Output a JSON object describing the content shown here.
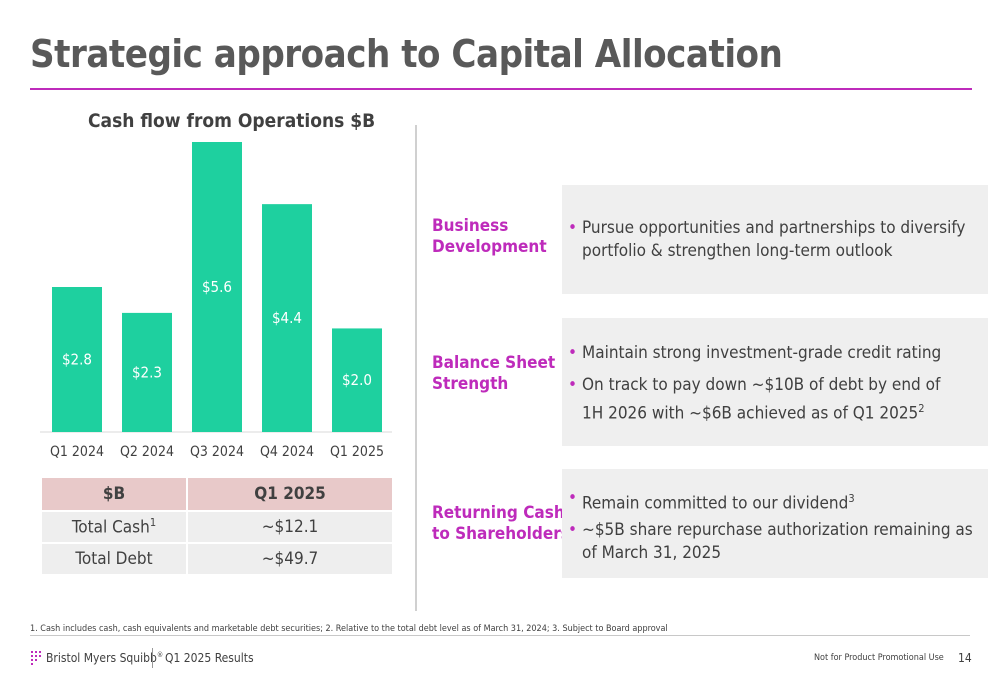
{
  "title": "Strategic approach to Capital Allocation",
  "chart_data": {
    "type": "bar",
    "title": "Cash flow from Operations $B",
    "categories": [
      "Q1 2024",
      "Q2 2024",
      "Q3 2024",
      "Q4 2024",
      "Q1 2025"
    ],
    "values": [
      2.8,
      2.3,
      5.6,
      4.4,
      2.0
    ],
    "data_labels": [
      "$2.8",
      "$2.3",
      "$5.6",
      "$4.4",
      "$2.0"
    ],
    "ylim": [
      0,
      5.6
    ],
    "bar_color": "#1ed09f",
    "grid": false,
    "legend": false
  },
  "cash_table": {
    "headers": [
      "$B",
      "Q1 2025"
    ],
    "rows": [
      {
        "label": "Total Cash",
        "sup": "1",
        "value": "~$12.1"
      },
      {
        "label": "Total Debt",
        "sup": "",
        "value": "~$49.7"
      }
    ]
  },
  "sections": [
    {
      "label_lines": [
        "Business",
        "Development"
      ],
      "bullets": [
        {
          "lines": [
            "Pursue opportunities and partnerships to diversify",
            "portfolio & strengthen long-term outlook"
          ],
          "sup": ""
        }
      ]
    },
    {
      "label_lines": [
        "Balance Sheet",
        "Strength"
      ],
      "bullets": [
        {
          "lines": [
            "Maintain strong investment-grade credit rating"
          ],
          "sup": ""
        },
        {
          "lines": [
            "On track to pay down ~$10B of debt by end of",
            "1H 2026 with ~$6B achieved as of Q1 2025"
          ],
          "sup": "2"
        }
      ]
    },
    {
      "label_lines": [
        "Returning Cash",
        "to Shareholders"
      ],
      "bullets": [
        {
          "lines": [
            "Remain committed to our dividend"
          ],
          "sup": "3"
        },
        {
          "lines": [
            "~$5B share repurchase authorization remaining as",
            "of March 31, 2025"
          ],
          "sup": ""
        }
      ]
    }
  ],
  "bullet_char": "•",
  "footnote": "1. Cash includes cash, cash equivalents and marketable debt securities; 2. Relative to the total debt level as of March 31, 2024; 3. Subject to Board approval",
  "footer": {
    "brand": "Bristol Myers Squibb",
    "brand_mark": "®",
    "results": "Q1 2025 Results",
    "disclaimer": "Not for Product Promotional Use",
    "page_number": "14"
  },
  "colors": {
    "accent": "#be2bbb",
    "bar": "#1ed09f",
    "table_header": "#e8c9c9",
    "panel": "#efefef"
  }
}
